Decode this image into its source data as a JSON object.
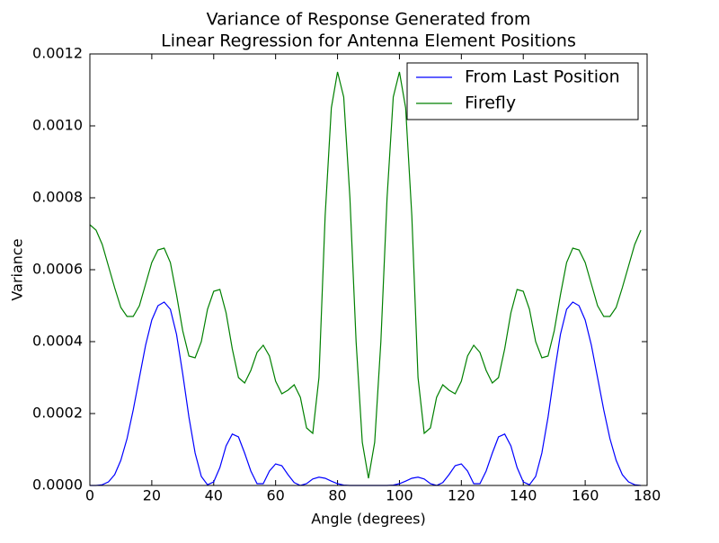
{
  "chart_data": {
    "type": "line",
    "title": [
      "Variance of Response Generated from",
      "Linear Regression for Antenna Element Positions"
    ],
    "xlabel": "Angle (degrees)",
    "ylabel": "Variance",
    "x": [
      0,
      2,
      4,
      6,
      8,
      10,
      12,
      14,
      16,
      18,
      20,
      22,
      24,
      26,
      28,
      30,
      32,
      34,
      36,
      38,
      40,
      42,
      44,
      46,
      48,
      50,
      52,
      54,
      56,
      58,
      60,
      62,
      64,
      66,
      68,
      70,
      72,
      74,
      76,
      78,
      80,
      82,
      84,
      86,
      88,
      90,
      92,
      94,
      96,
      98,
      100,
      102,
      104,
      106,
      108,
      110,
      112,
      114,
      116,
      118,
      120,
      122,
      124,
      126,
      128,
      130,
      132,
      134,
      136,
      138,
      140,
      142,
      144,
      146,
      148,
      150,
      152,
      154,
      156,
      158,
      160,
      162,
      164,
      166,
      168,
      170,
      172,
      174,
      176,
      178
    ],
    "series": [
      {
        "name": "From Last Position",
        "color": "#0000ff",
        "values": [
          0,
          0,
          2e-06,
          1e-05,
          3e-05,
          7e-05,
          0.00013,
          0.00021,
          0.0003,
          0.00039,
          0.00046,
          0.0005,
          0.00051,
          0.00049,
          0.00042,
          0.00031,
          0.00019,
          9e-05,
          2.5e-05,
          2e-06,
          1e-05,
          5e-05,
          0.00011,
          0.000143,
          0.000135,
          9e-05,
          4e-05,
          5e-06,
          5e-06,
          4e-05,
          6e-05,
          5.5e-05,
          3e-05,
          8e-06,
          0,
          5e-06,
          1.8e-05,
          2.3e-05,
          2e-05,
          1.2e-05,
          5e-06,
          1e-06,
          0,
          0,
          0,
          0,
          0,
          0,
          0,
          1e-06,
          5e-06,
          1.2e-05,
          2e-05,
          2.3e-05,
          1.8e-05,
          5e-06,
          0,
          8e-06,
          3e-05,
          5.5e-05,
          6e-05,
          4e-05,
          5e-06,
          5e-06,
          4e-05,
          9e-05,
          0.000135,
          0.000143,
          0.00011,
          5e-05,
          1e-05,
          2e-06,
          2.5e-05,
          9e-05,
          0.00019,
          0.00031,
          0.00042,
          0.00049,
          0.00051,
          0.0005,
          0.00046,
          0.00039,
          0.0003,
          0.00021,
          0.00013,
          7e-05,
          3e-05,
          1e-05,
          2e-06,
          0
        ]
      },
      {
        "name": "Firefly",
        "color": "#008000",
        "values": [
          0.000725,
          0.00071,
          0.00067,
          0.00061,
          0.00055,
          0.000495,
          0.00047,
          0.00047,
          0.0005,
          0.00056,
          0.00062,
          0.000655,
          0.00066,
          0.00062,
          0.00053,
          0.00043,
          0.00036,
          0.000355,
          0.0004,
          0.00049,
          0.00054,
          0.000545,
          0.00048,
          0.00038,
          0.0003,
          0.000285,
          0.00032,
          0.00037,
          0.00039,
          0.00036,
          0.00029,
          0.000255,
          0.000265,
          0.00028,
          0.000245,
          0.00016,
          0.000145,
          0.0003,
          0.00075,
          0.00105,
          0.00115,
          0.00108,
          0.0008,
          0.0004,
          0.00012,
          2e-05,
          0.00012,
          0.0004,
          0.0008,
          0.00108,
          0.00115,
          0.00105,
          0.00075,
          0.0003,
          0.000145,
          0.00016,
          0.000245,
          0.00028,
          0.000265,
          0.000255,
          0.00029,
          0.00036,
          0.00039,
          0.00037,
          0.00032,
          0.000285,
          0.0003,
          0.00038,
          0.00048,
          0.000545,
          0.00054,
          0.00049,
          0.0004,
          0.000355,
          0.00036,
          0.00043,
          0.00053,
          0.00062,
          0.00066,
          0.000655,
          0.00062,
          0.00056,
          0.0005,
          0.00047,
          0.00047,
          0.000495,
          0.00055,
          0.00061,
          0.00067,
          0.00071
        ]
      }
    ],
    "xlim": [
      0,
      180
    ],
    "xticks": [
      0,
      20,
      40,
      60,
      80,
      100,
      120,
      140,
      160,
      180
    ],
    "ylim": [
      0,
      0.0012
    ],
    "yticks": [
      {
        "value": 0,
        "label": "0.0000"
      },
      {
        "value": 0.0002,
        "label": "0.0002"
      },
      {
        "value": 0.0004,
        "label": "0.0004"
      },
      {
        "value": 0.0006,
        "label": "0.0006"
      },
      {
        "value": 0.0008,
        "label": "0.0008"
      },
      {
        "value": 0.001,
        "label": "0.0010"
      },
      {
        "value": 0.0012,
        "label": "0.0012"
      }
    ],
    "legend": "upper right",
    "grid": false
  }
}
